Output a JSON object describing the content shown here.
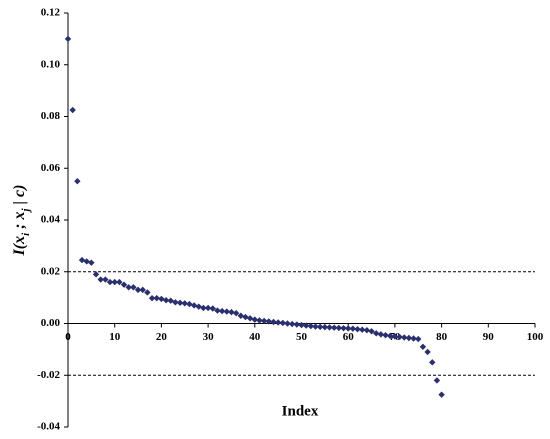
{
  "chart_data": {
    "type": "scatter",
    "xlabel": "Index",
    "ylabel_parts": [
      "I(x",
      "i",
      " ; x",
      "j",
      " | c)"
    ],
    "x": [
      0,
      1,
      2,
      3,
      4,
      5,
      6,
      7,
      8,
      9,
      10,
      11,
      12,
      13,
      14,
      15,
      16,
      17,
      18,
      19,
      20,
      21,
      22,
      23,
      24,
      25,
      26,
      27,
      28,
      29,
      30,
      31,
      32,
      33,
      34,
      35,
      36,
      37,
      38,
      39,
      40,
      41,
      42,
      43,
      44,
      45,
      46,
      47,
      48,
      49,
      50,
      51,
      52,
      53,
      54,
      55,
      56,
      57,
      58,
      59,
      60,
      61,
      62,
      63,
      64,
      65,
      66,
      67,
      68,
      69,
      70,
      71,
      72,
      73,
      74,
      75,
      76,
      77,
      78,
      79,
      80
    ],
    "values": [
      0.11,
      0.0825,
      0.055,
      0.0245,
      0.024,
      0.0235,
      0.019,
      0.017,
      0.017,
      0.016,
      0.016,
      0.016,
      0.015,
      0.014,
      0.014,
      0.013,
      0.013,
      0.012,
      0.0098,
      0.0098,
      0.0095,
      0.009,
      0.0088,
      0.0082,
      0.008,
      0.0078,
      0.0075,
      0.007,
      0.0065,
      0.006,
      0.006,
      0.0058,
      0.005,
      0.0048,
      0.0046,
      0.0044,
      0.004,
      0.003,
      0.0025,
      0.002,
      0.0015,
      0.0012,
      0.001,
      0.0008,
      0.0006,
      0.0004,
      0.0002,
      0,
      -0.0002,
      -0.0004,
      -0.0006,
      -0.0008,
      -0.001,
      -0.0012,
      -0.0013,
      -0.0014,
      -0.0015,
      -0.0016,
      -0.0017,
      -0.0018,
      -0.0019,
      -0.002,
      -0.0022,
      -0.0024,
      -0.0026,
      -0.003,
      -0.0038,
      -0.0042,
      -0.0045,
      -0.0048,
      -0.005,
      -0.0052,
      -0.0054,
      -0.0056,
      -0.0058,
      -0.006,
      -0.009,
      -0.011,
      -0.015,
      -0.022,
      -0.0275
    ],
    "color": "#2a2f6e",
    "xlim": [
      0,
      100
    ],
    "xticks": [
      0,
      10,
      20,
      30,
      40,
      50,
      60,
      70,
      80,
      90,
      100
    ],
    "ylim": [
      -0.04,
      0.12
    ],
    "yticks": [
      0.12,
      {
        "value": 0.1,
        "label": "0.10"
      },
      0.08,
      0.06,
      0.04,
      0.02,
      {
        "value": 0,
        "label": "0.00"
      },
      -0.02,
      -0.04
    ],
    "hlines": [
      0.02,
      -0.02
    ]
  }
}
